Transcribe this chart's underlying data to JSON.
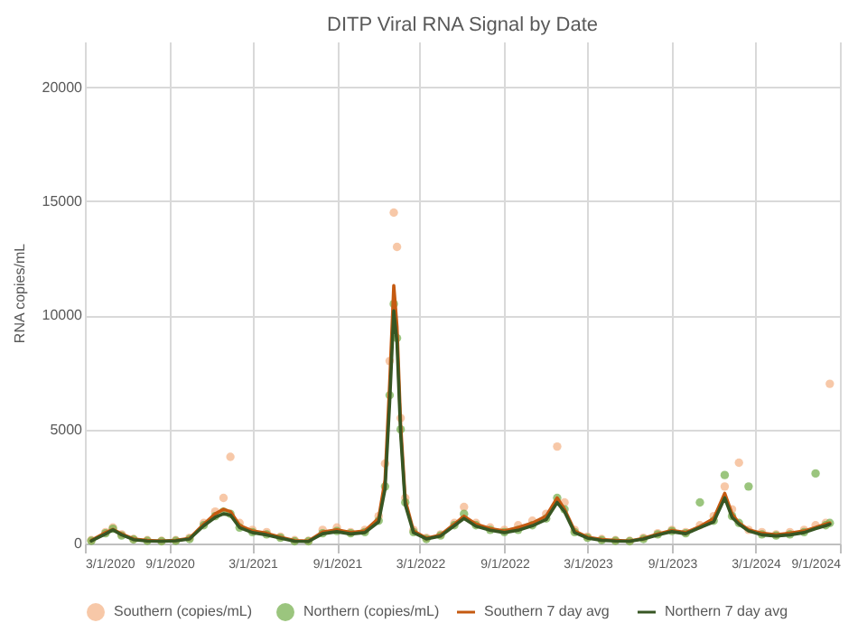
{
  "chart_data": {
    "type": "scatter",
    "title": "DITP Viral RNA Signal by Date",
    "ylabel": "RNA copies/mL",
    "x": [
      "2020-03-15",
      "2020-04-15",
      "2020-05-01",
      "2020-05-20",
      "2020-06-15",
      "2020-07-15",
      "2020-08-15",
      "2020-09-15",
      "2020-10-15",
      "2020-11-15",
      "2020-12-10",
      "2020-12-28",
      "2021-01-12",
      "2021-02-01",
      "2021-03-01",
      "2021-04-01",
      "2021-05-01",
      "2021-06-01",
      "2021-07-01",
      "2021-08-01",
      "2021-09-01",
      "2021-10-01",
      "2021-11-01",
      "2021-12-01",
      "2021-12-15",
      "2021-12-25",
      "2022-01-03",
      "2022-01-10",
      "2022-01-18",
      "2022-01-28",
      "2022-02-15",
      "2022-03-15",
      "2022-04-15",
      "2022-05-15",
      "2022-06-05",
      "2022-07-01",
      "2022-08-01",
      "2022-09-01",
      "2022-10-01",
      "2022-11-01",
      "2022-12-01",
      "2022-12-25",
      "2023-01-10",
      "2023-02-01",
      "2023-03-01",
      "2023-04-01",
      "2023-05-01",
      "2023-06-01",
      "2023-07-01",
      "2023-08-01",
      "2023-09-01",
      "2023-10-01",
      "2023-11-01",
      "2023-12-01",
      "2023-12-25",
      "2024-01-10",
      "2024-01-25",
      "2024-02-15",
      "2024-03-15",
      "2024-04-15",
      "2024-05-15",
      "2024-06-15",
      "2024-07-10",
      "2024-08-01",
      "2024-08-10"
    ],
    "series": [
      {
        "name": "Southern (copies/mL)",
        "color": "#f4b183",
        "values": [
          150,
          500,
          700,
          400,
          200,
          150,
          120,
          150,
          250,
          900,
          1400,
          2000,
          3800,
          900,
          600,
          500,
          300,
          150,
          120,
          600,
          700,
          500,
          600,
          1200,
          3500,
          8000,
          14500,
          13000,
          5500,
          2000,
          600,
          250,
          400,
          900,
          1600,
          900,
          700,
          600,
          800,
          1000,
          1300,
          4250,
          1800,
          600,
          300,
          200,
          150,
          120,
          250,
          450,
          600,
          500,
          800,
          1200,
          2500,
          1500,
          3540,
          600,
          500,
          400,
          500,
          600,
          800,
          900,
          7000
        ]
      },
      {
        "name": "Northern (copies/mL)",
        "color": "#70ad47",
        "values": [
          120,
          450,
          650,
          350,
          180,
          120,
          100,
          120,
          200,
          800,
          1200,
          1400,
          1300,
          700,
          500,
          400,
          250,
          100,
          100,
          450,
          550,
          450,
          500,
          1000,
          2500,
          6500,
          10500,
          9000,
          5000,
          1800,
          500,
          200,
          350,
          800,
          1300,
          800,
          600,
          500,
          600,
          800,
          1100,
          2000,
          1500,
          500,
          250,
          150,
          120,
          100,
          200,
          400,
          550,
          450,
          1800,
          1000,
          3000,
          1200,
          900,
          2500,
          400,
          350,
          400,
          500,
          3070,
          800,
          900
        ]
      },
      {
        "name": "Southern 7 day avg",
        "type": "line",
        "marker": "none",
        "color": "#c55a11",
        "values": [
          140,
          480,
          620,
          420,
          200,
          140,
          110,
          140,
          230,
          850,
          1300,
          1500,
          1400,
          800,
          550,
          450,
          280,
          130,
          110,
          500,
          600,
          480,
          550,
          1100,
          2800,
          7000,
          11300,
          9500,
          5200,
          1900,
          550,
          230,
          380,
          850,
          1200,
          850,
          650,
          550,
          700,
          900,
          1200,
          2000,
          1500,
          550,
          280,
          180,
          140,
          110,
          230,
          420,
          570,
          480,
          750,
          1100,
          2200,
          1300,
          900,
          600,
          450,
          380,
          450,
          550,
          700,
          850,
          900
        ]
      },
      {
        "name": "Northern 7 day avg",
        "type": "line",
        "marker": "none",
        "color": "#375623",
        "values": [
          110,
          420,
          600,
          380,
          170,
          110,
          100,
          120,
          200,
          780,
          1150,
          1300,
          1250,
          700,
          480,
          380,
          240,
          100,
          90,
          430,
          520,
          420,
          480,
          950,
          2400,
          6200,
          10200,
          8800,
          4800,
          1700,
          480,
          200,
          330,
          780,
          1100,
          760,
          580,
          480,
          580,
          780,
          1050,
          1800,
          1400,
          480,
          240,
          140,
          110,
          100,
          200,
          380,
          520,
          430,
          700,
          950,
          2000,
          1150,
          850,
          550,
          380,
          330,
          380,
          480,
          650,
          780,
          850
        ]
      }
    ],
    "xlim": [
      "2020-03-01",
      "2024-09-01"
    ],
    "xticks": [
      {
        "value": "2020-03-01",
        "label": "3/1/2020"
      },
      {
        "value": "2020-09-01",
        "label": "9/1/2020"
      },
      {
        "value": "2021-03-01",
        "label": "3/1/2021"
      },
      {
        "value": "2021-09-01",
        "label": "9/1/2021"
      },
      {
        "value": "2022-03-01",
        "label": "3/1/2022"
      },
      {
        "value": "2022-09-01",
        "label": "9/1/2022"
      },
      {
        "value": "2023-03-01",
        "label": "3/1/2023"
      },
      {
        "value": "2023-09-01",
        "label": "9/1/2023"
      },
      {
        "value": "2024-03-01",
        "label": "3/1/2024"
      },
      {
        "value": "2024-09-01",
        "label": "9/1/2024"
      }
    ],
    "ylim": [
      0,
      22000
    ],
    "yticks": [
      0,
      5000,
      10000,
      15000,
      20000
    ],
    "grid": true,
    "legend": "bottom",
    "marker": "circle",
    "line_style": "solid"
  }
}
